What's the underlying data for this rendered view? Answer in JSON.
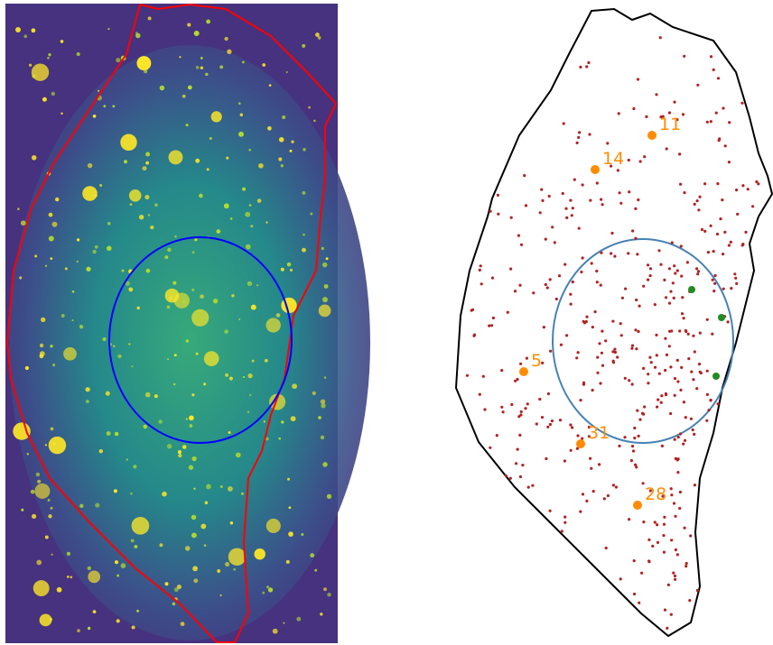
{
  "labels": [
    "11",
    "14",
    "5",
    "31",
    "28"
  ]
}
